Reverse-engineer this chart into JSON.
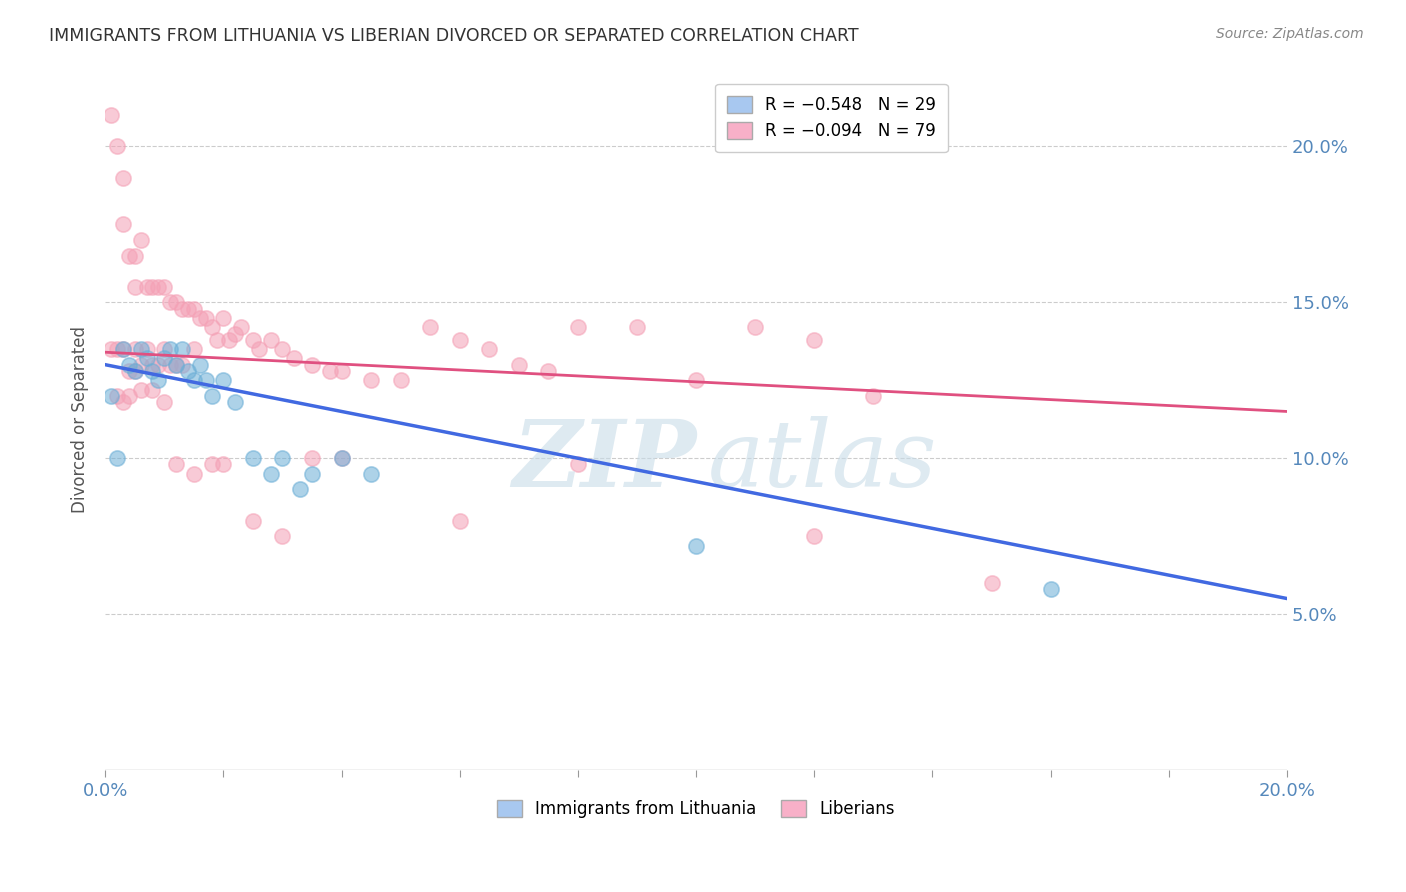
{
  "title": "IMMIGRANTS FROM LITHUANIA VS LIBERIAN DIVORCED OR SEPARATED CORRELATION CHART",
  "source": "Source: ZipAtlas.com",
  "ylabel": "Divorced or Separated",
  "xlim": [
    0.0,
    0.2
  ],
  "ylim": [
    0.0,
    0.225
  ],
  "ytick_values": [
    0.05,
    0.1,
    0.15,
    0.2
  ],
  "xtick_values": [
    0.0,
    0.02,
    0.04,
    0.06,
    0.08,
    0.1,
    0.12,
    0.14,
    0.16,
    0.18,
    0.2
  ],
  "legend_entries": [
    {
      "label": "R = −0.548   N = 29",
      "color": "#a8c8f0"
    },
    {
      "label": "R = −0.094   N = 79",
      "color": "#f8b0c8"
    }
  ],
  "blue_scatter_x": [
    0.001,
    0.002,
    0.003,
    0.004,
    0.005,
    0.006,
    0.007,
    0.008,
    0.009,
    0.01,
    0.011,
    0.012,
    0.013,
    0.014,
    0.015,
    0.016,
    0.017,
    0.018,
    0.02,
    0.022,
    0.025,
    0.028,
    0.03,
    0.033,
    0.035,
    0.04,
    0.045,
    0.1,
    0.16
  ],
  "blue_scatter_y": [
    0.12,
    0.1,
    0.135,
    0.13,
    0.128,
    0.135,
    0.132,
    0.128,
    0.125,
    0.132,
    0.135,
    0.13,
    0.135,
    0.128,
    0.125,
    0.13,
    0.125,
    0.12,
    0.125,
    0.118,
    0.1,
    0.095,
    0.1,
    0.09,
    0.095,
    0.1,
    0.095,
    0.072,
    0.058
  ],
  "pink_scatter_x": [
    0.001,
    0.001,
    0.002,
    0.002,
    0.003,
    0.003,
    0.003,
    0.004,
    0.004,
    0.005,
    0.005,
    0.005,
    0.006,
    0.006,
    0.007,
    0.007,
    0.008,
    0.008,
    0.009,
    0.009,
    0.01,
    0.01,
    0.011,
    0.011,
    0.012,
    0.012,
    0.013,
    0.013,
    0.014,
    0.015,
    0.015,
    0.016,
    0.017,
    0.018,
    0.019,
    0.02,
    0.021,
    0.022,
    0.023,
    0.025,
    0.026,
    0.028,
    0.03,
    0.032,
    0.035,
    0.038,
    0.04,
    0.045,
    0.05,
    0.055,
    0.06,
    0.065,
    0.07,
    0.075,
    0.08,
    0.09,
    0.1,
    0.11,
    0.12,
    0.13,
    0.002,
    0.003,
    0.004,
    0.005,
    0.006,
    0.008,
    0.01,
    0.012,
    0.015,
    0.018,
    0.02,
    0.025,
    0.03,
    0.035,
    0.04,
    0.06,
    0.08,
    0.12,
    0.15
  ],
  "pink_scatter_y": [
    0.21,
    0.135,
    0.2,
    0.135,
    0.19,
    0.175,
    0.135,
    0.165,
    0.128,
    0.165,
    0.155,
    0.135,
    0.17,
    0.13,
    0.155,
    0.135,
    0.155,
    0.13,
    0.155,
    0.13,
    0.155,
    0.135,
    0.15,
    0.13,
    0.15,
    0.13,
    0.148,
    0.13,
    0.148,
    0.148,
    0.135,
    0.145,
    0.145,
    0.142,
    0.138,
    0.145,
    0.138,
    0.14,
    0.142,
    0.138,
    0.135,
    0.138,
    0.135,
    0.132,
    0.13,
    0.128,
    0.128,
    0.125,
    0.125,
    0.142,
    0.138,
    0.135,
    0.13,
    0.128,
    0.142,
    0.142,
    0.125,
    0.142,
    0.138,
    0.12,
    0.12,
    0.118,
    0.12,
    0.128,
    0.122,
    0.122,
    0.118,
    0.098,
    0.095,
    0.098,
    0.098,
    0.08,
    0.075,
    0.1,
    0.1,
    0.08,
    0.098,
    0.075,
    0.06
  ],
  "blue_line_x": [
    0.0,
    0.2
  ],
  "blue_line_y": [
    0.13,
    0.055
  ],
  "pink_line_x": [
    0.0,
    0.2
  ],
  "pink_line_y": [
    0.134,
    0.115
  ],
  "blue_color": "#6baed6",
  "pink_color": "#f4a0b5",
  "blue_line_color": "#4169E1",
  "pink_line_color": "#e05080",
  "watermark_zip": "ZIP",
  "watermark_atlas": "atlas",
  "marker_size": 120,
  "alpha": 0.55,
  "background_color": "#ffffff",
  "grid_color": "#cccccc"
}
